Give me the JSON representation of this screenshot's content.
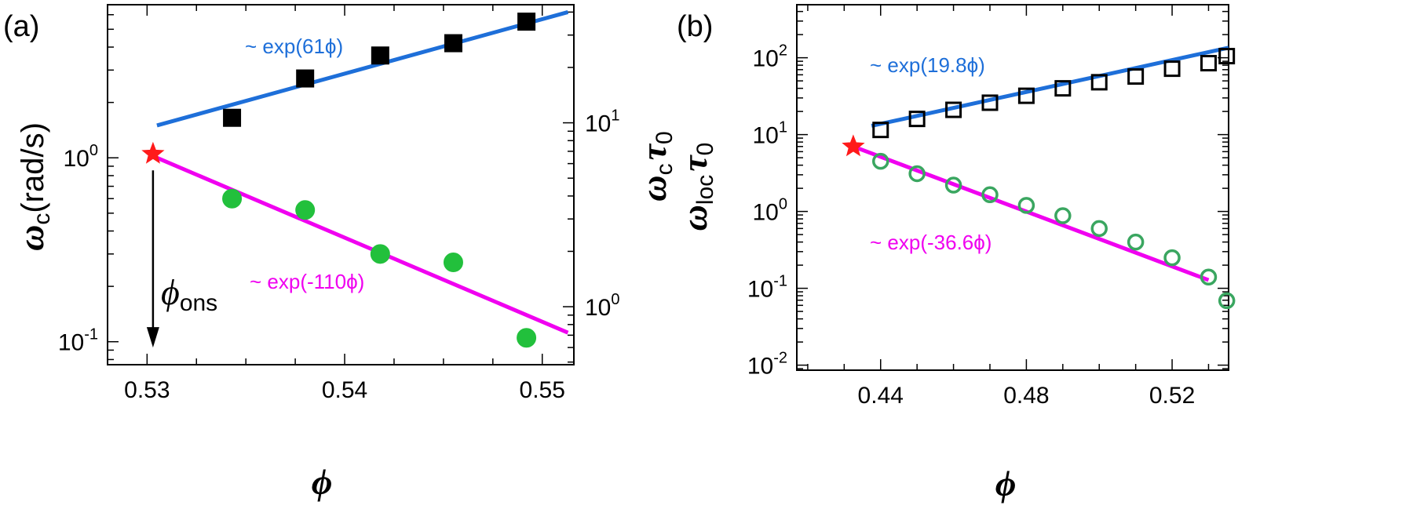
{
  "chart_data": [
    {
      "panel_label": "(a)",
      "type": "scatter",
      "xlabel": "ϕ",
      "ylabel_left": {
        "main": "ω",
        "sub": "c",
        "rest": "(rad/s)"
      },
      "ylabel_right": {
        "main": "ω",
        "sub": "c",
        "main2": "τ",
        "sub2": "0"
      },
      "xlim": [
        0.528,
        0.5516
      ],
      "ylim_left": [
        0.075,
        6.8
      ],
      "yscale": "log",
      "xticks": [
        {
          "v": 0.53,
          "label": "0.53"
        },
        {
          "v": 0.54,
          "label": "0.54"
        },
        {
          "v": 0.55,
          "label": "0.55"
        }
      ],
      "yticks_left": [
        {
          "v": 0.1,
          "base": "10",
          "exp": "-1"
        },
        {
          "v": 1,
          "base": "10",
          "exp": "0"
        }
      ],
      "yticks_right": [
        {
          "v": 0.155,
          "base": "10",
          "exp": "0"
        },
        {
          "v": 1.55,
          "base": "10",
          "exp": "1"
        }
      ],
      "series": [
        {
          "marker": "square",
          "filled": true,
          "color": "#000000",
          "x": [
            0.5343,
            0.538,
            0.5418,
            0.5455,
            0.5492
          ],
          "y": [
            1.65,
            2.7,
            3.6,
            4.2,
            5.5
          ]
        },
        {
          "marker": "circle",
          "filled": true,
          "color": "#22c03c",
          "x": [
            0.5343,
            0.538,
            0.5418,
            0.5455,
            0.5492
          ],
          "y": [
            0.6,
            0.52,
            0.3,
            0.27,
            0.105
          ]
        }
      ],
      "fits": [
        {
          "label": "~ exp(61ϕ)",
          "color": "#1e6fd9",
          "x": [
            0.5305,
            0.5513
          ],
          "y": [
            1.5,
            6.2
          ]
        },
        {
          "label": "~ exp(-110ϕ)",
          "color": "#f000f0",
          "x": [
            0.5305,
            0.5513
          ],
          "y": [
            1.0,
            0.112
          ]
        }
      ],
      "star": {
        "x": 0.5303,
        "y": 1.05,
        "color": "#ff1a1a"
      },
      "arrow_label": {
        "main": "ϕ",
        "sub": "ons"
      },
      "arrow": {
        "x": 0.5303,
        "y_from": 1.0,
        "y_to": 0.093
      }
    },
    {
      "panel_label": "(b)",
      "type": "scatter",
      "xlabel": "ϕ",
      "ylabel_left": {
        "main": "ω",
        "sub": "loc",
        "main2": "τ",
        "sub2": "0"
      },
      "xlim": [
        0.417,
        0.5355
      ],
      "ylim_left": [
        0.0086,
        490
      ],
      "yscale": "log",
      "xticks": [
        {
          "v": 0.44,
          "label": "0.44"
        },
        {
          "v": 0.48,
          "label": "0.48"
        },
        {
          "v": 0.52,
          "label": "0.52"
        }
      ],
      "yticks_left": [
        {
          "v": 0.01,
          "base": "10",
          "exp": "-2"
        },
        {
          "v": 0.1,
          "base": "10",
          "exp": "-1"
        },
        {
          "v": 1,
          "base": "10",
          "exp": "0"
        },
        {
          "v": 10,
          "base": "10",
          "exp": "1"
        },
        {
          "v": 100,
          "base": "10",
          "exp": "2"
        }
      ],
      "series": [
        {
          "marker": "square",
          "filled": false,
          "color": "#000000",
          "x": [
            0.44,
            0.45,
            0.46,
            0.47,
            0.48,
            0.49,
            0.5,
            0.51,
            0.52,
            0.53,
            0.535
          ],
          "y": [
            11.5,
            16,
            21,
            26,
            32,
            40,
            48,
            57,
            72,
            85,
            105
          ]
        },
        {
          "marker": "circle",
          "filled": false,
          "color": "#3aa660",
          "x": [
            0.44,
            0.45,
            0.46,
            0.47,
            0.48,
            0.49,
            0.5,
            0.51,
            0.52,
            0.53,
            0.535
          ],
          "y": [
            4.5,
            3.1,
            2.2,
            1.65,
            1.2,
            0.88,
            0.6,
            0.4,
            0.25,
            0.14,
            0.069
          ]
        }
      ],
      "fits": [
        {
          "label": "~ exp(19.8ϕ)",
          "color": "#1e6fd9",
          "x": [
            0.4375,
            0.5355
          ],
          "y": [
            13,
            135
          ]
        },
        {
          "label": "~ exp(-36.6ϕ)",
          "color": "#f000f0",
          "x": [
            0.4325,
            0.53
          ],
          "y": [
            7.0,
            0.128
          ]
        }
      ],
      "star": {
        "x": 0.4325,
        "y": 7.0,
        "color": "#ff1a1a"
      }
    }
  ]
}
